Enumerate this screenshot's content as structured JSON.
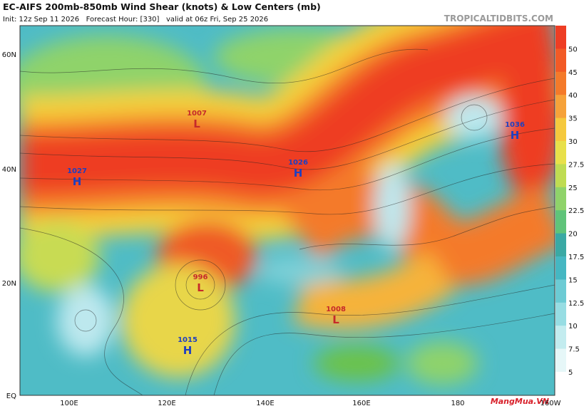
{
  "header": {
    "title": "EC-AIFS 200mb-850mb Wind Shear (knots) & Low Centers (mb)",
    "subtitle": "Init: 12z Sep 11 2026   Forecast Hour: [330]   valid at 06z Fri, Sep 25 2026",
    "site": "TROPICALTIDBITS.COM"
  },
  "map": {
    "lat_labels": [
      "60N",
      "40N",
      "20N",
      "EQ"
    ],
    "lon_labels": [
      "100E",
      "120E",
      "140E",
      "160E",
      "180",
      "160W"
    ]
  },
  "colorbar": {
    "labels": [
      50,
      45,
      40,
      35,
      30,
      27.5,
      25,
      22.5,
      20,
      17.5,
      15,
      12.5,
      10,
      7.5,
      5
    ]
  },
  "centers": [
    {
      "type": "H",
      "pressure": "1027"
    },
    {
      "type": "L",
      "pressure": "1007"
    },
    {
      "type": "H",
      "pressure": "1026"
    },
    {
      "type": "H",
      "pressure": "1036"
    },
    {
      "type": "L",
      "pressure": "996"
    },
    {
      "type": "H",
      "pressure": "1015"
    },
    {
      "type": "L",
      "pressure": "1008"
    }
  ],
  "watermark": "MangMua.VN"
}
